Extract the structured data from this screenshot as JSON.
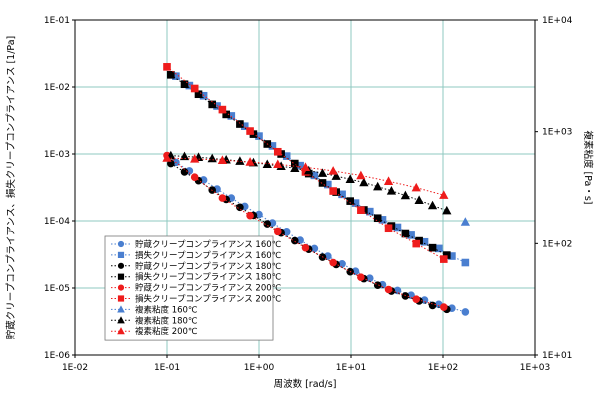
{
  "chart_data": {
    "type": "scatter",
    "x_label": "周波数 [rad/s]",
    "y_left_label": "貯蔵クリープコンプライアンス、損失クリープコンプライアンス [1/Pa]",
    "y_right_label": "複素粘度 [Pa・s]",
    "x_scale": "log",
    "y_left_scale": "log",
    "y_right_scale": "log",
    "xlim": [
      0.01,
      1000
    ],
    "y_left_lim": [
      1e-06,
      0.1
    ],
    "y_right_lim": [
      10,
      10000
    ],
    "x_ticks": [
      "1E-02",
      "1E-01",
      "1E+00",
      "1E+01",
      "1E+02",
      "1E+03"
    ],
    "y_left_ticks": [
      "1E-06",
      "1E-05",
      "1E-04",
      "1E-03",
      "1E-02",
      "1E-01"
    ],
    "y_right_ticks": [
      "1E+01",
      "1E+02",
      "1E+03",
      "1E+04"
    ],
    "grid": true,
    "legend_position": "lower-left",
    "series": [
      {
        "name": "貯蔵クリープコンプライアンス 160℃",
        "axis": "left",
        "color": "#4a7fd0",
        "marker": "circle",
        "line": "dotted",
        "x": [
          0.125,
          0.175,
          0.25,
          0.35,
          0.5,
          0.7,
          1.0,
          1.4,
          2.0,
          2.8,
          4.0,
          5.6,
          8.0,
          11.2,
          16,
          22,
          32,
          45,
          63,
          90,
          125,
          175
        ],
        "y": [
          0.00075,
          0.00056,
          0.00041,
          0.0003,
          0.00022,
          0.000165,
          0.000125,
          9.3e-05,
          6.9e-05,
          5.2e-05,
          3.9e-05,
          3e-05,
          2.3e-05,
          1.78e-05,
          1.4e-05,
          1.12e-05,
          9.2e-06,
          7.8e-06,
          6.6e-06,
          5.7e-06,
          5e-06,
          4.4e-06
        ]
      },
      {
        "name": "損失クリープコンプライアンス 160℃",
        "axis": "left",
        "color": "#4a7fd0",
        "marker": "square",
        "line": "dotted",
        "x": [
          0.125,
          0.175,
          0.25,
          0.35,
          0.5,
          0.7,
          1.0,
          1.4,
          2.0,
          2.8,
          4.0,
          5.6,
          8.0,
          11.2,
          16,
          22,
          32,
          45,
          63,
          90,
          125,
          175
        ],
        "y": [
          0.0145,
          0.0105,
          0.0074,
          0.0052,
          0.0037,
          0.0026,
          0.00185,
          0.00132,
          0.00093,
          0.00067,
          0.00048,
          0.00035,
          0.00025,
          0.000185,
          0.000138,
          0.000104,
          8e-05,
          6.2e-05,
          4.9e-05,
          3.9e-05,
          3e-05,
          2.4e-05
        ]
      },
      {
        "name": "貯蔵クリープコンプライアンス 180℃",
        "axis": "left",
        "color": "#000000",
        "marker": "circle",
        "line": "dotted",
        "x": [
          0.11,
          0.155,
          0.22,
          0.31,
          0.44,
          0.62,
          0.87,
          1.23,
          1.74,
          2.45,
          3.47,
          4.9,
          6.9,
          9.8,
          13.8,
          19.5,
          27.5,
          39,
          55,
          77,
          110
        ],
        "y": [
          0.00072,
          0.00054,
          0.0004,
          0.00029,
          0.00021,
          0.00016,
          0.000121,
          9e-05,
          6.7e-05,
          5.1e-05,
          3.8e-05,
          2.9e-05,
          2.25e-05,
          1.75e-05,
          1.38e-05,
          1.1e-05,
          9e-06,
          7.6e-06,
          6.4e-06,
          5.5e-06,
          4.8e-06
        ]
      },
      {
        "name": "損失クリープコンプライアンス 180℃",
        "axis": "left",
        "color": "#000000",
        "marker": "square",
        "line": "dotted",
        "x": [
          0.11,
          0.155,
          0.22,
          0.31,
          0.44,
          0.62,
          0.87,
          1.23,
          1.74,
          2.45,
          3.47,
          4.9,
          6.9,
          9.8,
          13.8,
          19.5,
          27.5,
          39,
          55,
          77,
          110
        ],
        "y": [
          0.0152,
          0.011,
          0.0078,
          0.0055,
          0.0039,
          0.0028,
          0.00198,
          0.00141,
          0.001,
          0.00072,
          0.00051,
          0.00037,
          0.00027,
          0.000198,
          0.000146,
          0.00011,
          8.4e-05,
          6.5e-05,
          5.1e-05,
          4e-05,
          3.1e-05
        ]
      },
      {
        "name": "貯蔵クリープコンプライアンス 200℃",
        "axis": "left",
        "color": "#ee1c1c",
        "marker": "circle",
        "line": "dotted",
        "x": [
          0.1,
          0.2,
          0.4,
          0.8,
          1.6,
          3.2,
          6.4,
          12.8,
          25.6,
          51.2,
          102
        ],
        "y": [
          0.00095,
          0.00045,
          0.00022,
          0.00012,
          7e-05,
          4e-05,
          2.4e-05,
          1.45e-05,
          9.5e-06,
          6.8e-06,
          5.2e-06
        ]
      },
      {
        "name": "損失クリープコンプライアンス 200℃",
        "axis": "left",
        "color": "#ee1c1c",
        "marker": "square",
        "line": "dotted",
        "x": [
          0.1,
          0.2,
          0.4,
          0.8,
          1.6,
          3.2,
          6.4,
          12.8,
          25.6,
          51.2,
          102
        ],
        "y": [
          0.02,
          0.0095,
          0.0046,
          0.0022,
          0.00108,
          0.00054,
          0.00028,
          0.000145,
          7.8e-05,
          4.6e-05,
          2.7e-05
        ]
      },
      {
        "name": "複素粘度 160℃",
        "axis": "right",
        "color": "#4a7fd0",
        "marker": "triangle",
        "line": "none",
        "x": [
          175
        ],
        "y": [
          155
        ]
      },
      {
        "name": "複素粘度 180℃",
        "axis": "right",
        "color": "#000000",
        "marker": "triangle",
        "line": "dotted",
        "x": [
          0.11,
          0.155,
          0.22,
          0.31,
          0.44,
          0.62,
          0.87,
          1.23,
          1.74,
          2.45,
          3.47,
          4.9,
          6.9,
          9.8,
          13.8,
          19.5,
          27.5,
          39,
          55,
          77,
          110
        ],
        "y": [
          610,
          600,
          590,
          575,
          560,
          545,
          528,
          510,
          490,
          470,
          448,
          425,
          400,
          375,
          350,
          322,
          295,
          268,
          243,
          218,
          196
        ]
      },
      {
        "name": "複素粘度 200℃",
        "axis": "right",
        "color": "#ee1c1c",
        "marker": "triangle",
        "line": "dotted",
        "x": [
          0.1,
          0.2,
          0.4,
          0.8,
          1.6,
          3.2,
          6.4,
          12.8,
          25.6,
          51.2,
          102
        ],
        "y": [
          580,
          570,
          555,
          535,
          510,
          480,
          445,
          405,
          360,
          315,
          270
        ]
      }
    ]
  }
}
